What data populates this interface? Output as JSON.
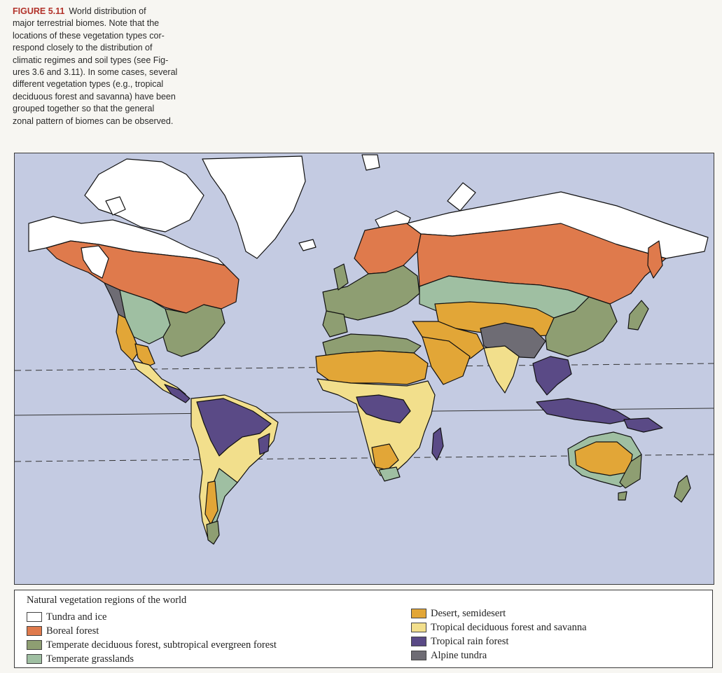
{
  "caption": {
    "label": "FIGURE 5.11",
    "lines": [
      "World distribution of",
      "major terrestrial biomes. Note that the",
      "locations of these vegetation types cor-",
      "respond closely to the distribution of",
      "climatic regimes and soil types (see Fig-",
      "ures 3.6 and 3.11). In some cases, several",
      "different vegetation types (e.g., tropical",
      "deciduous forest and savanna) have been",
      "grouped together so that the general",
      "zonal pattern of biomes can be observed."
    ]
  },
  "map": {
    "colors": {
      "ocean": "#c4cbe2",
      "tundra_ice": "#ffffff",
      "boreal_forest": "#df7a4c",
      "temperate_deciduous": "#8e9e72",
      "temperate_grasslands": "#9fbfa2",
      "desert": "#e2a637",
      "tropical_savanna": "#f2df8c",
      "tropical_rain_forest": "#5a4a86",
      "alpine_tundra": "#6e6c74",
      "outline": "#111111"
    }
  },
  "legend": {
    "title": "Natural vegetation regions of the world",
    "left_items": [
      {
        "label": "Tundra and ice",
        "color": "#ffffff"
      },
      {
        "label": "Boreal forest",
        "color": "#df7a4c"
      },
      {
        "label": "Temperate deciduous forest, subtropical evergreen forest",
        "color": "#8e9e72"
      },
      {
        "label": "Temperate grasslands",
        "color": "#9fbfa2"
      }
    ],
    "right_items": [
      {
        "label": "Desert, semidesert",
        "color": "#e2a637"
      },
      {
        "label": "Tropical deciduous forest and savanna",
        "color": "#f2df8c"
      },
      {
        "label": "Tropical rain forest",
        "color": "#5a4a86"
      },
      {
        "label": "Alpine tundra",
        "color": "#6e6c74"
      }
    ]
  }
}
